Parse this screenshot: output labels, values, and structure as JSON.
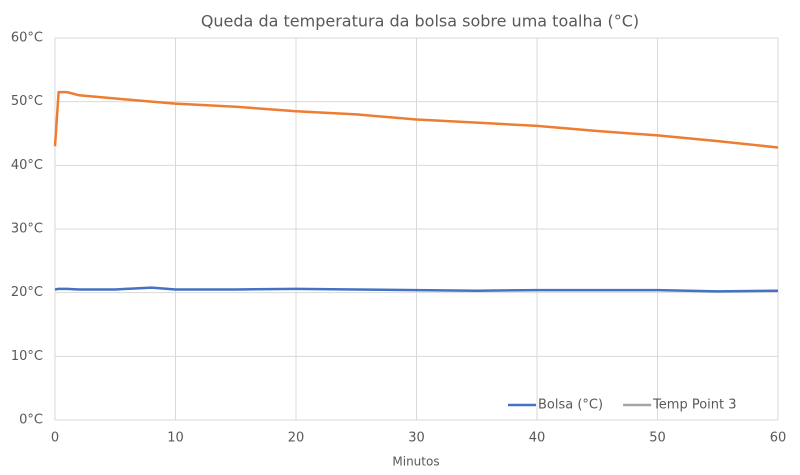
{
  "chart_data": {
    "type": "line",
    "title": "Queda da temperatura da bolsa sobre uma toalha (°C)",
    "x_label": "Minutos",
    "x": [
      0,
      0.3,
      1,
      2,
      5,
      8,
      10,
      15,
      20,
      25,
      30,
      35,
      40,
      45,
      50,
      55,
      60
    ],
    "series": [
      {
        "name": "Bolsa (°C)",
        "color": "#4472c4",
        "values": [
          20.5,
          20.6,
          20.6,
          20.5,
          20.5,
          20.8,
          20.5,
          20.5,
          20.6,
          20.5,
          20.4,
          20.3,
          20.4,
          20.4,
          20.4,
          20.2,
          20.3
        ]
      },
      {
        "name": "Temp Point 3",
        "color": "#a5a5a5",
        "values": [
          null,
          null,
          null,
          null,
          null,
          null,
          null,
          null,
          null,
          null,
          null,
          null,
          null,
          null,
          null,
          null,
          null
        ]
      },
      {
        "color": "#ed7d31",
        "values": [
          43,
          51.5,
          51.5,
          51,
          50.5,
          50,
          49.7,
          49.2,
          48.5,
          48,
          47.2,
          46.7,
          46.2,
          45.4,
          44.7,
          43.8,
          42.8
        ]
      }
    ],
    "xlim": [
      0,
      60
    ],
    "xticks": [
      0,
      10,
      20,
      30,
      40,
      50,
      60
    ],
    "ylim": [
      0,
      60
    ],
    "yticks": [
      {
        "value": 0,
        "label": "0°C"
      },
      {
        "value": 10,
        "label": "10°C"
      },
      {
        "value": 20,
        "label": "20°C"
      },
      {
        "value": 30,
        "label": "30°C"
      },
      {
        "value": 40,
        "label": "40°C"
      },
      {
        "value": 50,
        "label": "50°C"
      },
      {
        "value": 60,
        "label": "60°C"
      }
    ],
    "grid": true,
    "legend": "lower right"
  }
}
